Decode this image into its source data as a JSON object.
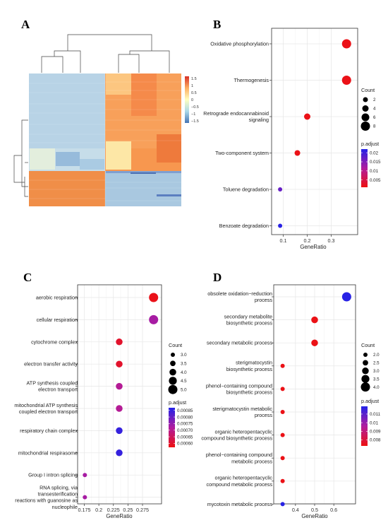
{
  "panels": {
    "A": "A",
    "B": "B",
    "C": "C",
    "D": "D"
  },
  "chart_data": [
    {
      "panel": "A",
      "type": "heatmap",
      "title": "",
      "scale_ticks": [
        1.5,
        1,
        0.5,
        0,
        -0.5,
        -1,
        -1.5
      ],
      "scale_colors": [
        "#d73027",
        "#fdae61",
        "#ffffbf",
        "#abd9e9",
        "#4575b4"
      ],
      "column_labels": [
        "",
        "",
        "",
        "",
        "",
        ""
      ],
      "column_groups": [
        {
          "cols": [
            0,
            1,
            2
          ],
          "upper_rows": "#b7d3e6",
          "lower_rows": "#f0944f"
        },
        {
          "cols": [
            3,
            4,
            5
          ],
          "upper_rows": "#f7a35c",
          "lower_rows": "#aac9e0"
        }
      ]
    },
    {
      "panel": "B",
      "type": "scatter",
      "categories": [
        "Oxidative phosphorylation",
        "Thermogenesis",
        "Retrograde endocannabinoid signaling",
        "Two-component system",
        "Toluene degradation",
        "Benzoate degradation"
      ],
      "x": [
        0.364,
        0.364,
        0.2,
        0.159,
        0.087,
        0.087
      ],
      "count": [
        8,
        8,
        4,
        3,
        1,
        1
      ],
      "p_adjust": [
        0.0015,
        0.0015,
        0.0015,
        0.0015,
        0.017,
        0.0215
      ],
      "xlabel": "GeneRatio",
      "xlim": [
        0.075,
        0.375
      ],
      "xticks": [
        0.1,
        0.2,
        0.3
      ],
      "size_legend": {
        "title": "Count",
        "values": [
          2,
          4,
          6,
          8
        ],
        "range": [
          1,
          8
        ]
      },
      "color_legend": {
        "title": "p.adjust",
        "values": [
          0.02,
          0.015,
          0.01,
          0.005
        ],
        "range": [
          0.001,
          0.022
        ],
        "low_color": "#ee1010",
        "high_color": "#2222e8"
      },
      "grid": true
    },
    {
      "panel": "C",
      "type": "scatter",
      "categories": [
        "aerobic respiration",
        "cellular respiration",
        "cytochrome complex",
        "electron transfer activity",
        "ATP synthesis coupled electron transport",
        "mitochondrial ATP synthesis coupled electron transport",
        "respiratory chain complex",
        "mitochondrial respirasome",
        "Group I intron splicing",
        "RNA splicing, via transesterification reactions with guanosine as nucleophile"
      ],
      "x": [
        0.294,
        0.294,
        0.235,
        0.235,
        0.235,
        0.235,
        0.235,
        0.235,
        0.176,
        0.176
      ],
      "count": [
        5,
        5,
        4,
        4,
        4,
        4,
        4,
        4,
        3,
        3
      ],
      "p_adjust": [
        0.00058,
        0.00073,
        0.0006,
        0.0006,
        0.00071,
        0.00071,
        0.00085,
        0.00085,
        0.00073,
        0.00073
      ],
      "xlabel": "GeneRatio",
      "xlim": [
        0.172,
        0.298
      ],
      "xticks": [
        0.175,
        0.2,
        0.225,
        0.25,
        0.275
      ],
      "size_legend": {
        "title": "Count",
        "values": [
          3.0,
          3.5,
          4.0,
          4.5,
          5.0
        ],
        "range": [
          3,
          5
        ]
      },
      "color_legend": {
        "title": "p.adjust",
        "values": [
          0.00085,
          0.0008,
          0.00075,
          0.0007,
          0.00065,
          0.0006
        ],
        "range": [
          0.00057,
          0.00087
        ],
        "low_color": "#ee1010",
        "high_color": "#2222e8"
      },
      "grid": true
    },
    {
      "panel": "D",
      "type": "scatter",
      "categories": [
        "obsolete oxidation−reduction process",
        "secondary metabolite biosynthetic process",
        "secondary metabolic process",
        "sterigmatocystin biosynthetic process",
        "phenol−containing compound biosynthetic process",
        "sterigmatocystin metabolic process",
        "organic heteropentacyclic compound biosynthetic process",
        "phenol−containing compound metabolic process",
        "organic heteropentacyclic compound metabolic process",
        "mycotoxin metabolic process"
      ],
      "x": [
        0.667,
        0.5,
        0.5,
        0.333,
        0.333,
        0.333,
        0.333,
        0.333,
        0.333,
        0.333
      ],
      "count": [
        4,
        3,
        3,
        2,
        2,
        2,
        2,
        2,
        2,
        2
      ],
      "p_adjust": [
        0.0118,
        0.0074,
        0.0074,
        0.0074,
        0.0074,
        0.0074,
        0.0074,
        0.0074,
        0.0074,
        0.0118
      ],
      "xlabel": "GeneRatio",
      "xlim": [
        0.316,
        0.684
      ],
      "xticks": [
        0.4,
        0.5,
        0.6
      ],
      "size_legend": {
        "title": "Count",
        "values": [
          2.0,
          2.5,
          3.0,
          3.5,
          4.0
        ],
        "range": [
          2,
          4
        ]
      },
      "color_legend": {
        "title": "p.adjust",
        "values": [
          0.011,
          0.01,
          0.009,
          0.008
        ],
        "range": [
          0.0073,
          0.0119
        ],
        "low_color": "#ee1010",
        "high_color": "#2222e8"
      },
      "grid": true
    }
  ]
}
